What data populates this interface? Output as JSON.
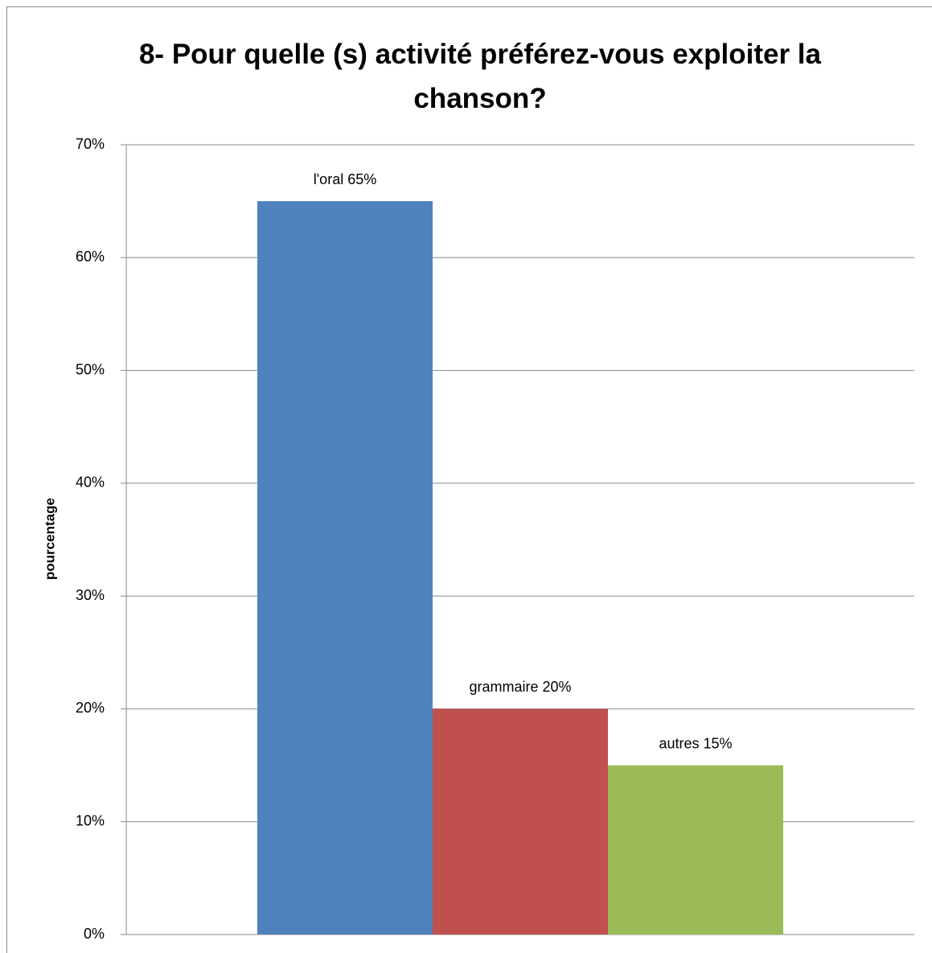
{
  "chart_data": {
    "type": "bar",
    "title": "8- Pour quelle (s) activité préférez-vous exploiter la chanson?",
    "ylabel": "pourcentage",
    "values": [
      65,
      20,
      15
    ],
    "value_labels": [
      "l'oral 65%",
      "grammaire 20%",
      "autres 15%"
    ],
    "colors": [
      "#4f81bd",
      "#c0504d",
      "#9bbb59"
    ],
    "ylim": [
      0,
      70
    ],
    "yticks": [
      {
        "value": 0,
        "label": "0%"
      },
      {
        "value": 10,
        "label": "10%"
      },
      {
        "value": 20,
        "label": "20%"
      },
      {
        "value": 30,
        "label": "30%"
      },
      {
        "value": 40,
        "label": "40%"
      },
      {
        "value": 50,
        "label": "50%"
      },
      {
        "value": 60,
        "label": "60%"
      },
      {
        "value": 70,
        "label": "70%"
      }
    ],
    "grid": true
  }
}
